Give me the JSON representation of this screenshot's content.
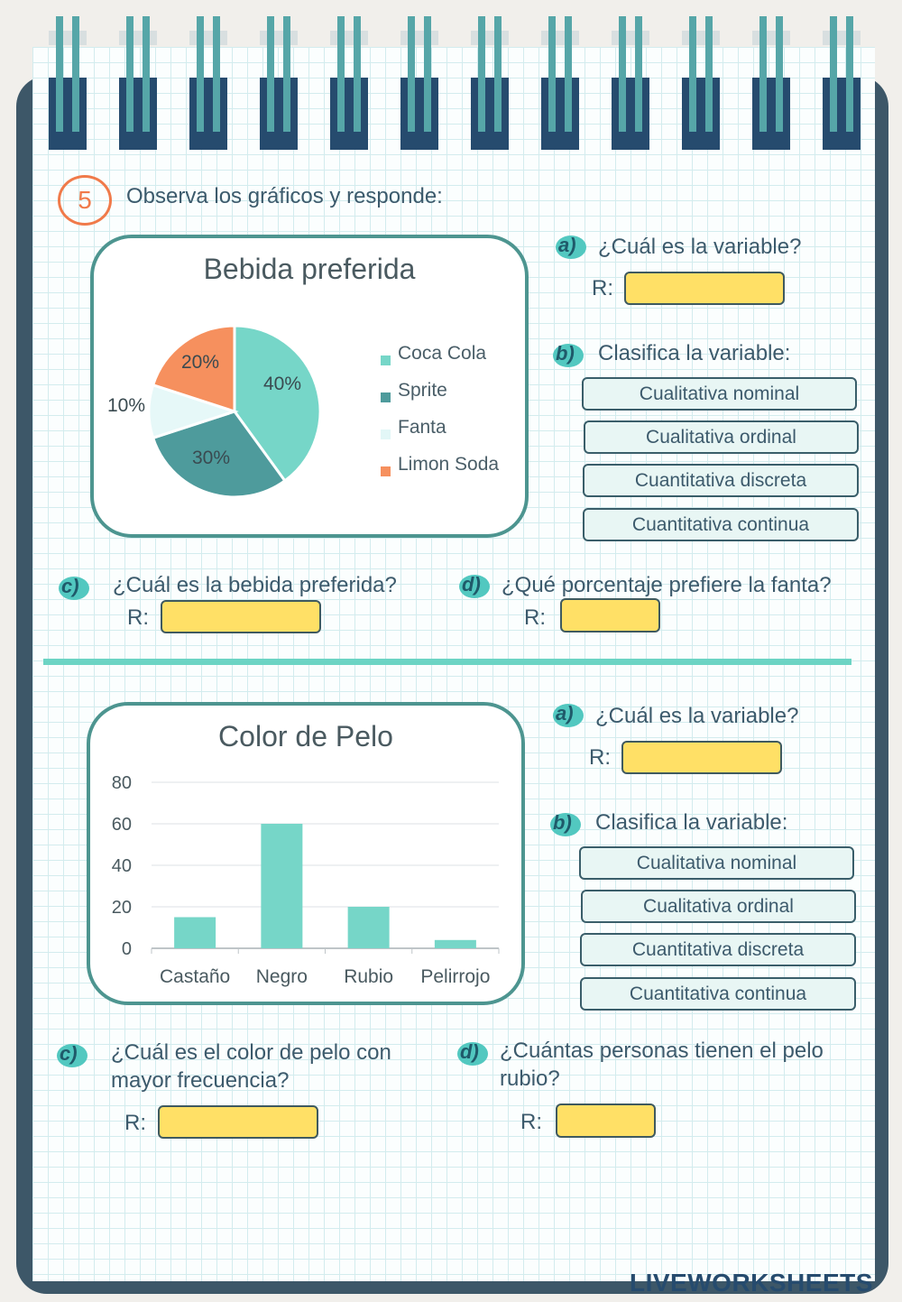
{
  "exercise": {
    "number": "5",
    "instruction": "Observa los gráficos y responde:"
  },
  "section1": {
    "chart_title": "Bebida preferida",
    "qa": {
      "label": "a)",
      "text": "¿Cuál es la variable?",
      "r": "R:"
    },
    "qb": {
      "label": "b)",
      "text": "Clasifica la variable:"
    },
    "options": [
      "Cualitativa nominal",
      "Cualitativa ordinal",
      "Cuantitativa discreta",
      "Cuantitativa continua"
    ],
    "qc": {
      "label": "c)",
      "text": "¿Cuál es la bebida preferida?",
      "r": "R:"
    },
    "qd": {
      "label": "d)",
      "text": "¿Qué porcentaje prefiere la fanta?",
      "r": "R:"
    }
  },
  "section2": {
    "chart_title": "Color de Pelo",
    "qa": {
      "label": "a)",
      "text": "¿Cuál es la variable?",
      "r": "R:"
    },
    "qb": {
      "label": "b)",
      "text": "Clasifica la variable:"
    },
    "options": [
      "Cualitativa nominal",
      "Cualitativa ordinal",
      "Cuantitativa discreta",
      "Cuantitativa continua"
    ],
    "qc": {
      "label": "c)",
      "line1": "¿Cuál es el color de pelo con",
      "line2": "mayor frecuencia?",
      "r": "R:"
    },
    "qd": {
      "label": "d)",
      "line1": "¿Cuántas personas tienen el pelo",
      "line2": "rubio?",
      "r": "R:"
    }
  },
  "colors": {
    "accent": "#6cd4c4",
    "answer_box": "#ffe066",
    "ring": "#264b6e",
    "orange": "#f07a4a"
  },
  "watermark": "LIVEWORKSHEETS",
  "chart_data": [
    {
      "type": "pie",
      "title": "Bebida preferida",
      "categories": [
        "Coca Cola",
        "Sprite",
        "Fanta",
        "Limon Soda"
      ],
      "values": [
        40,
        30,
        10,
        20
      ],
      "labels": [
        "40%",
        "30%",
        "10%",
        "20%"
      ],
      "colors": [
        "#76d6c8",
        "#4e9b9c",
        "#e6f8f8",
        "#f6905e"
      ],
      "legend": "right"
    },
    {
      "type": "bar",
      "title": "Color de Pelo",
      "categories": [
        "Castaño",
        "Negro",
        "Rubio",
        "Pelirrojo"
      ],
      "values": [
        15,
        60,
        20,
        4
      ],
      "ylim": [
        0,
        80
      ],
      "yticks": [
        "0",
        "20",
        "40",
        "60",
        "80"
      ],
      "grid": true,
      "color": "#76d6c8"
    }
  ]
}
